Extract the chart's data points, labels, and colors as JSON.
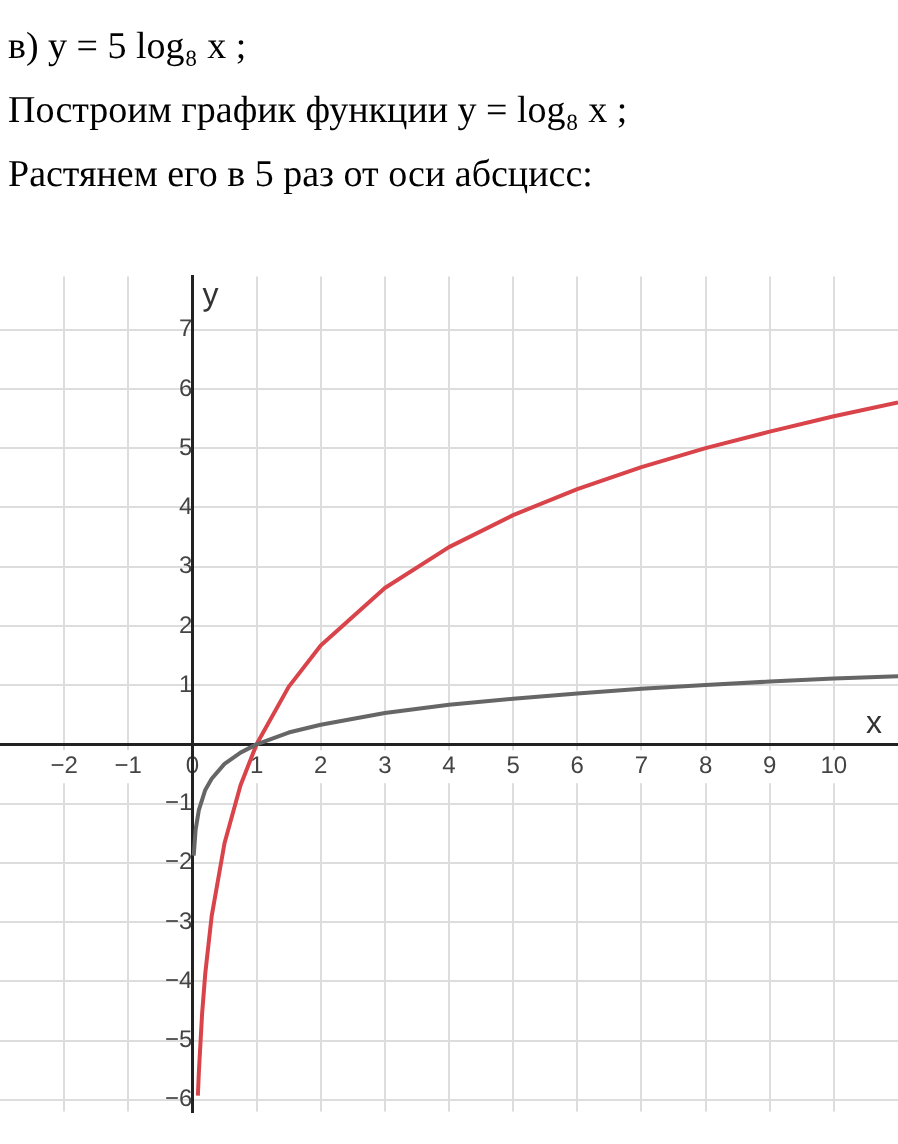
{
  "chart_data": {
    "type": "line",
    "title": "в) y = 5 log₈ x ;",
    "subtitle": "Построим график функции y = log₈ x ;",
    "annotations": [
      "Растянем его в 5 раз от оси абсцисс:"
    ],
    "xlabel": "x",
    "ylabel": "y",
    "xlim": [
      -3,
      11
    ],
    "ylim": [
      -6.2,
      7.9
    ],
    "xticks": [
      {
        "value": -2,
        "label": "−2"
      },
      {
        "value": -1,
        "label": "−1"
      },
      0,
      1,
      2,
      3,
      4,
      5,
      6,
      7,
      8,
      9,
      10
    ],
    "yticks": [
      {
        "value": -6,
        "label": "−6"
      },
      {
        "value": -5,
        "label": "−5"
      },
      {
        "value": -4,
        "label": "−4"
      },
      {
        "value": -3,
        "label": "−3"
      },
      {
        "value": -2,
        "label": "−2"
      },
      {
        "value": -1,
        "label": "−1"
      },
      1,
      2,
      3,
      4,
      5,
      6,
      7
    ],
    "grid": true,
    "legend": false,
    "marker": "none",
    "line_style": "solid",
    "series": [
      {
        "color": "#666666",
        "x": [
          0.02,
          0.05,
          0.1,
          0.2,
          0.3,
          0.5,
          0.75,
          1,
          1.5,
          2,
          3,
          4,
          5,
          6,
          7,
          8,
          9,
          10,
          11
        ],
        "values": [
          -1.88,
          -1.44,
          -1.11,
          -0.77,
          -0.58,
          -0.33,
          -0.14,
          0,
          0.2,
          0.33,
          0.53,
          0.67,
          0.77,
          0.86,
          0.94,
          1,
          1.06,
          1.11,
          1.15
        ]
      },
      {
        "color": "#d9434a",
        "x": [
          0.085,
          0.1,
          0.15,
          0.2,
          0.3,
          0.5,
          0.75,
          1,
          1.5,
          2,
          3,
          4,
          5,
          6,
          7,
          8,
          9,
          10,
          11
        ],
        "values": [
          -5.93,
          -5.54,
          -4.56,
          -3.87,
          -2.9,
          -1.67,
          -0.69,
          0,
          0.97,
          1.67,
          2.64,
          3.33,
          3.87,
          4.31,
          4.68,
          5,
          5.28,
          5.54,
          5.77
        ]
      }
    ]
  }
}
